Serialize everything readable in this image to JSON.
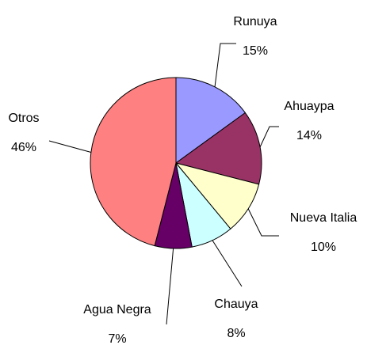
{
  "chart_data": {
    "type": "pie",
    "categories": [
      "Runuya",
      "Ahuaypa",
      "Nueva Italia",
      "Chauya",
      "Agua Negra",
      "Otros"
    ],
    "values": [
      15,
      14,
      10,
      8,
      7,
      46
    ],
    "value_labels": [
      "15%",
      "14%",
      "10%",
      "8%",
      "7%",
      "46%"
    ],
    "colors": [
      "#9999ff",
      "#993366",
      "#ffffcc",
      "#ccffff",
      "#660066",
      "#ff8080"
    ]
  }
}
